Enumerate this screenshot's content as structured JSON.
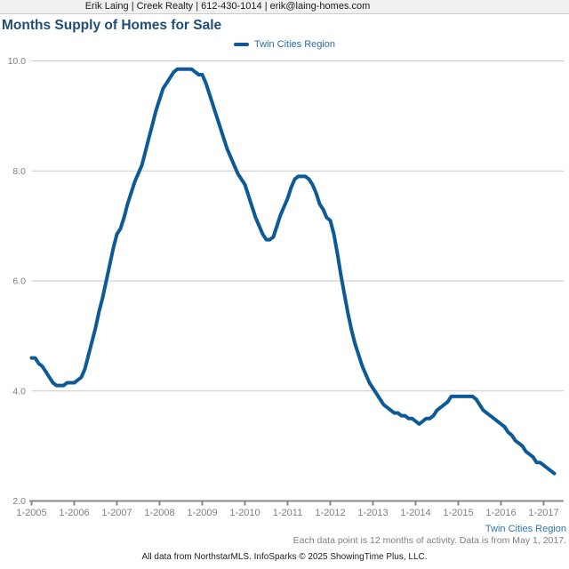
{
  "header": {
    "contact_line": "Erik Laing | Creek Realty | 612-430-1014 | erik@laing-homes.com"
  },
  "footnotes": {
    "region_label": "Twin Cities Region",
    "activity_note": "Each data point is 12 months of activity. Data is from May 1, 2017.",
    "attribution": "All data from NorthstarMLS. InfoSparks © 2025 ShowingTime Plus, LLC."
  },
  "colors": {
    "series": "#0e5a96",
    "title": "#1f4e79",
    "legend_text": "#2a6cb0",
    "region_label": "#2e74b5",
    "grid": "#c9c9c9",
    "axis": "#888888",
    "tick_text": "#808080",
    "header_bg": "#f1f1f1",
    "header_border": "#cccccc"
  },
  "chart_data": {
    "type": "line",
    "title": "Months Supply of Homes for Sale",
    "legend_position": "top-center",
    "grid": "horizontal",
    "ylim": [
      2.0,
      10.0
    ],
    "y_tick_values": [
      2.0,
      4.0,
      6.0,
      8.0,
      10.0
    ],
    "y_tick_labels": [
      "2.0",
      "4.0",
      "6.0",
      "8.0",
      "10.0"
    ],
    "x_tick_labels": [
      "1-2005",
      "1-2006",
      "1-2007",
      "1-2008",
      "1-2009",
      "1-2010",
      "1-2011",
      "1-2012",
      "1-2013",
      "1-2014",
      "1-2015",
      "1-2016",
      "1-2017"
    ],
    "series": [
      {
        "name": "Twin Cities Region",
        "color": "#0e5a96",
        "frequency": "monthly",
        "start_month": "2005-01",
        "end_month": "2017-04",
        "values": [
          4.6,
          4.6,
          4.5,
          4.45,
          4.35,
          4.25,
          4.15,
          4.1,
          4.1,
          4.1,
          4.15,
          4.15,
          4.15,
          4.2,
          4.25,
          4.4,
          4.65,
          4.9,
          5.15,
          5.45,
          5.7,
          6.0,
          6.3,
          6.6,
          6.85,
          6.95,
          7.15,
          7.4,
          7.6,
          7.8,
          7.95,
          8.1,
          8.35,
          8.6,
          8.85,
          9.1,
          9.3,
          9.5,
          9.6,
          9.7,
          9.8,
          9.85,
          9.85,
          9.85,
          9.85,
          9.85,
          9.8,
          9.75,
          9.75,
          9.6,
          9.4,
          9.2,
          9.0,
          8.8,
          8.6,
          8.4,
          8.25,
          8.1,
          7.95,
          7.85,
          7.75,
          7.55,
          7.35,
          7.15,
          7.0,
          6.85,
          6.75,
          6.75,
          6.8,
          7.0,
          7.2,
          7.35,
          7.5,
          7.7,
          7.85,
          7.9,
          7.9,
          7.9,
          7.85,
          7.75,
          7.6,
          7.4,
          7.3,
          7.15,
          7.1,
          6.85,
          6.5,
          6.1,
          5.75,
          5.4,
          5.1,
          4.85,
          4.65,
          4.45,
          4.3,
          4.15,
          4.05,
          3.95,
          3.85,
          3.75,
          3.7,
          3.65,
          3.6,
          3.6,
          3.55,
          3.55,
          3.5,
          3.5,
          3.45,
          3.4,
          3.45,
          3.5,
          3.5,
          3.55,
          3.65,
          3.7,
          3.75,
          3.8,
          3.9,
          3.9,
          3.9,
          3.9,
          3.9,
          3.9,
          3.9,
          3.85,
          3.75,
          3.65,
          3.6,
          3.55,
          3.5,
          3.45,
          3.4,
          3.35,
          3.25,
          3.2,
          3.1,
          3.05,
          3.0,
          2.9,
          2.85,
          2.8,
          2.7,
          2.7,
          2.65,
          2.6,
          2.55,
          2.5
        ]
      }
    ]
  }
}
